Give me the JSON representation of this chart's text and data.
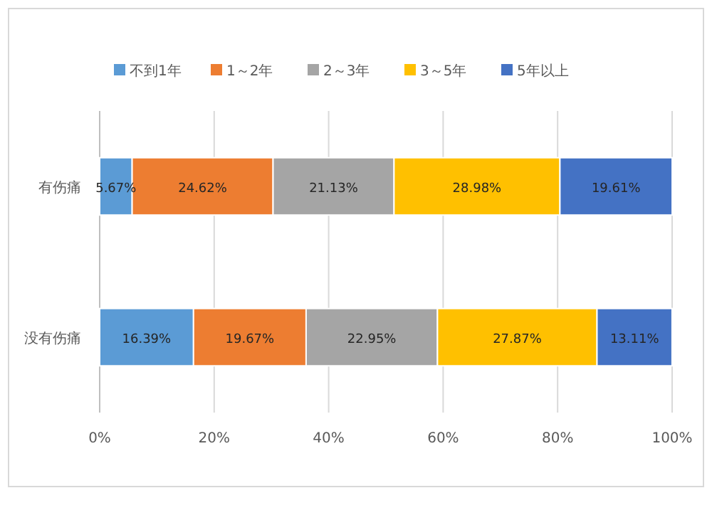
{
  "chart_data": {
    "type": "bar",
    "orientation": "horizontal",
    "stacked": true,
    "categories": [
      "有伤痛",
      "没有伤痛"
    ],
    "series": [
      {
        "name": "不到1年",
        "color": "#5b9bd5",
        "values": [
          5.67,
          16.39
        ],
        "value_labels": [
          "5.67%",
          "16.39%"
        ]
      },
      {
        "name": "1～2年",
        "color": "#ed7d31",
        "values": [
          24.62,
          19.67
        ],
        "value_labels": [
          "24.62%",
          "19.67%"
        ]
      },
      {
        "name": "2～3年",
        "color": "#a5a5a5",
        "values": [
          21.13,
          22.95
        ],
        "value_labels": [
          "21.13%",
          "22.95%"
        ]
      },
      {
        "name": "3～5年",
        "color": "#ffc000",
        "values": [
          28.98,
          27.87
        ],
        "value_labels": [
          "28.98%",
          "27.87%"
        ]
      },
      {
        "name": "5年以上",
        "color": "#4472c4",
        "values": [
          19.61,
          13.11
        ],
        "value_labels": [
          "19.61%",
          "13.11%"
        ]
      }
    ],
    "xlim": [
      0,
      100
    ],
    "xticks": [
      {
        "value": 0,
        "label": "0%"
      },
      {
        "value": 20,
        "label": "20%"
      },
      {
        "value": 40,
        "label": "40%"
      },
      {
        "value": 60,
        "label": "60%"
      },
      {
        "value": 80,
        "label": "80%"
      },
      {
        "value": 100,
        "label": "100%"
      }
    ],
    "grid": "x",
    "legend": "top"
  }
}
